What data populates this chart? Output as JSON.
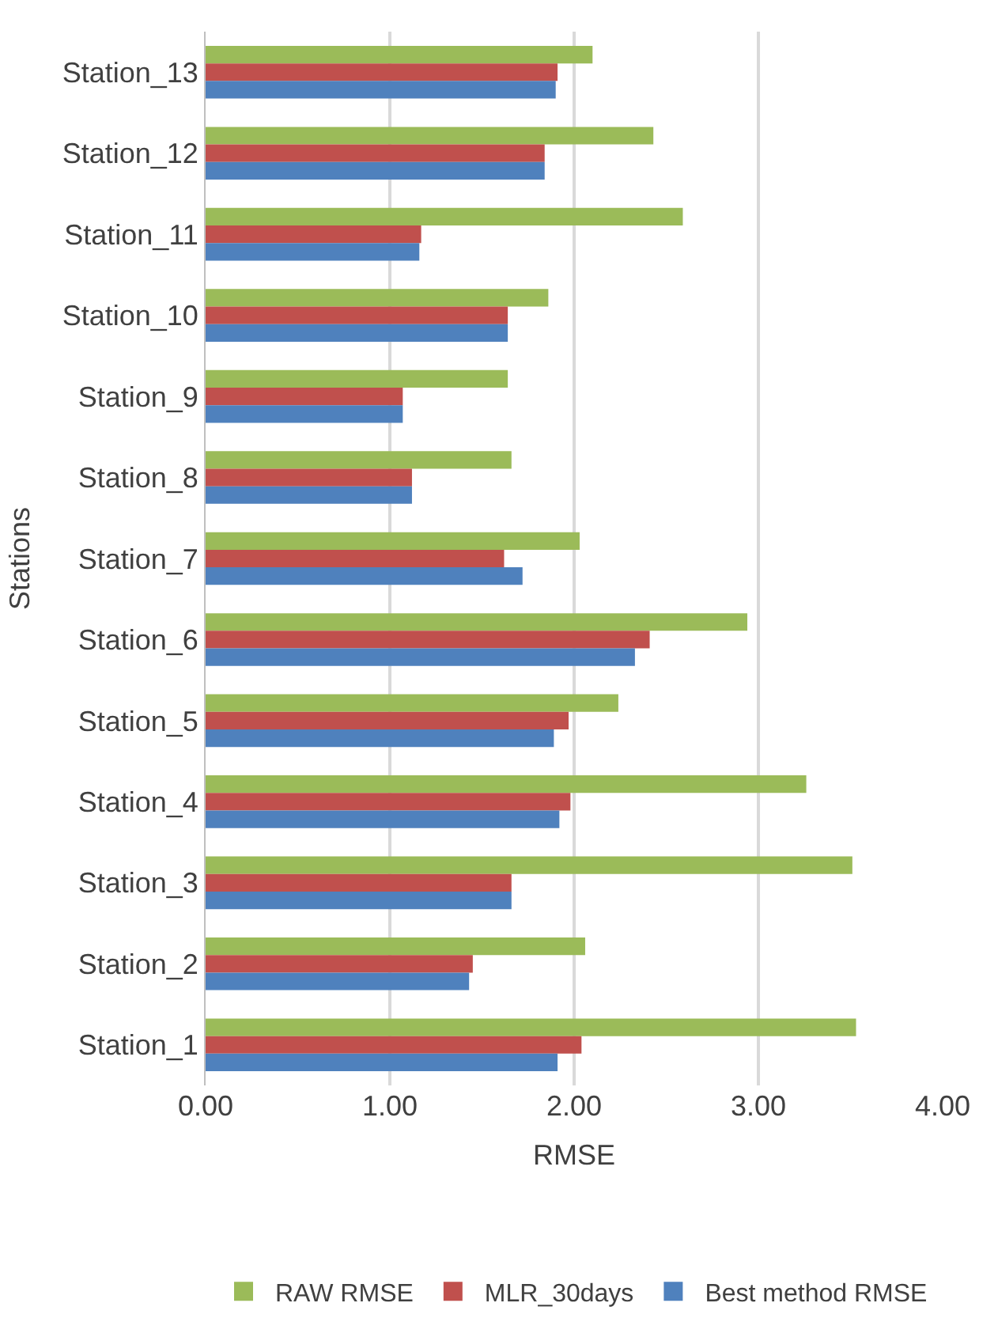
{
  "chart_data": {
    "type": "bar",
    "orientation": "horizontal",
    "xlabel": "RMSE",
    "ylabel": "Stations",
    "categories": [
      "Station_13",
      "Station_12",
      "Station_11",
      "Station_10",
      "Station_9",
      "Station_8",
      "Station_7",
      "Station_6",
      "Station_5",
      "Station_4",
      "Station_3",
      "Station_2",
      "Station_1"
    ],
    "series": [
      {
        "name": "RAW RMSE",
        "color": "#9bbb59",
        "values": [
          2.1,
          2.43,
          2.59,
          1.86,
          1.64,
          1.66,
          2.03,
          2.94,
          2.24,
          3.26,
          3.51,
          2.06,
          3.53
        ]
      },
      {
        "name": "MLR_30days",
        "color": "#c0504d",
        "values": [
          1.91,
          1.84,
          1.17,
          1.64,
          1.07,
          1.12,
          1.62,
          2.41,
          1.97,
          1.98,
          1.66,
          1.45,
          2.04
        ]
      },
      {
        "name": "Best method RMSE",
        "color": "#4f81bd",
        "values": [
          1.9,
          1.84,
          1.16,
          1.64,
          1.07,
          1.12,
          1.72,
          2.33,
          1.89,
          1.92,
          1.66,
          1.43,
          1.91
        ]
      }
    ],
    "xlim": [
      0,
      4
    ],
    "xticks": [
      {
        "value": 0,
        "label": "0.00"
      },
      {
        "value": 1,
        "label": "1.00"
      },
      {
        "value": 2,
        "label": "2.00"
      },
      {
        "value": 3,
        "label": "3.00"
      },
      {
        "value": 4,
        "label": "4.00"
      }
    ],
    "grid": "x",
    "legend": "bottom"
  }
}
